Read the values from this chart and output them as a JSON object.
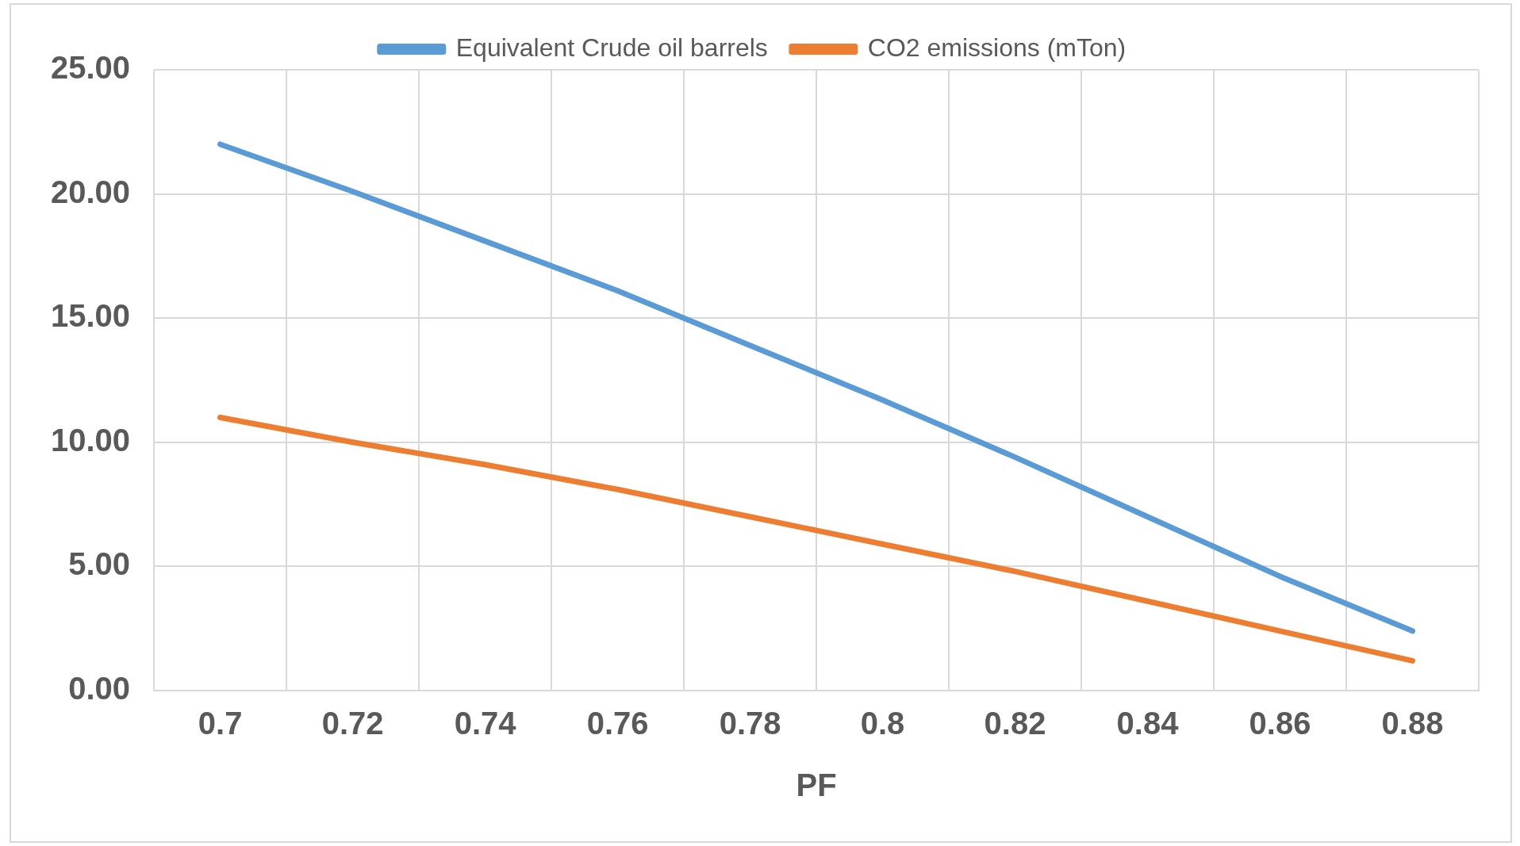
{
  "chart_data": {
    "type": "line",
    "xlabel": "PF",
    "categories": [
      "0.7",
      "0.72",
      "0.74",
      "0.76",
      "0.78",
      "0.8",
      "0.82",
      "0.84",
      "0.86",
      "0.88"
    ],
    "series": [
      {
        "name": "Equivalent Crude oil barrels",
        "color": "#5b9bd5",
        "values": [
          22.0,
          20.1,
          18.1,
          16.1,
          13.9,
          11.7,
          9.4,
          7.0,
          4.6,
          2.4
        ]
      },
      {
        "name": "CO2 emissions (mTon)",
        "color": "#ed7d31",
        "values": [
          11.0,
          10.0,
          9.1,
          8.1,
          7.0,
          5.9,
          4.8,
          3.6,
          2.4,
          1.2
        ]
      }
    ],
    "ylim": [
      0,
      25
    ],
    "yticks": [
      {
        "value": 0,
        "label": "0.00"
      },
      {
        "value": 5,
        "label": "5.00"
      },
      {
        "value": 10,
        "label": "10.00"
      },
      {
        "value": 15,
        "label": "15.00"
      },
      {
        "value": 20,
        "label": "20.00"
      },
      {
        "value": 25,
        "label": "25.00"
      }
    ],
    "grid": true,
    "legend": "top",
    "marker": "none",
    "line_style": "solid"
  }
}
